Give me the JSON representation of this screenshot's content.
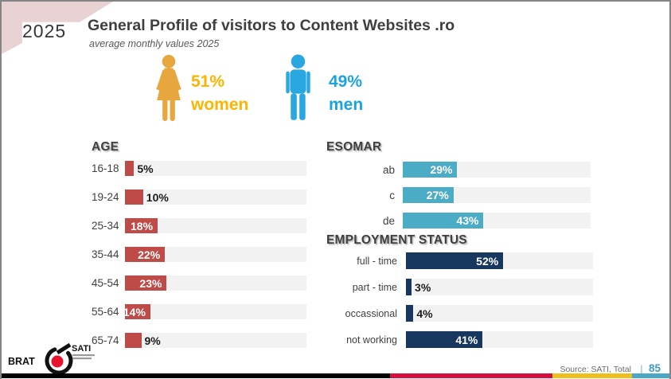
{
  "slide": {
    "year": "2025",
    "title": "General Profile of visitors to Content Websites .ro",
    "subtitle": "average monthly values 2025"
  },
  "gender": {
    "women": {
      "percent": "51%",
      "label": "women"
    },
    "men": {
      "percent": "49%",
      "label": "men"
    }
  },
  "chart_data": [
    {
      "type": "bar",
      "orientation": "horizontal",
      "title": "AGE",
      "categories": [
        "16-18",
        "19-24",
        "25-34",
        "35-44",
        "45-54",
        "55-64",
        "65-74"
      ],
      "values": [
        5,
        10,
        18,
        22,
        23,
        14,
        9
      ],
      "value_labels": [
        "5%",
        "10%",
        "18%",
        "22%",
        "23%",
        "14%",
        "9%"
      ],
      "value_unit": "%",
      "xlim": [
        0,
        100
      ],
      "bar_color": "#BE4B48",
      "track_color": "#F2F2F2"
    },
    {
      "type": "bar",
      "orientation": "horizontal",
      "title": "ESOMAR",
      "categories": [
        "ab",
        "c",
        "de"
      ],
      "values": [
        29,
        27,
        43
      ],
      "value_labels": [
        "29%",
        "27%",
        "43%"
      ],
      "value_unit": "%",
      "xlim": [
        0,
        100
      ],
      "bar_color": "#4BACC6",
      "track_color": "#F2F2F2"
    },
    {
      "type": "bar",
      "orientation": "horizontal",
      "title": "EMPLOYMENT STATUS",
      "categories": [
        "full - time",
        "part - time",
        "occassional",
        "not working"
      ],
      "values": [
        52,
        3,
        4,
        41
      ],
      "value_labels": [
        "52%",
        "3%",
        "4%",
        "41%"
      ],
      "value_unit": "%",
      "xlim": [
        0,
        100
      ],
      "bar_color": "#17375E",
      "track_color": "#F2F2F2"
    }
  ],
  "footer": {
    "logo": {
      "brat": "BRAT",
      "sati": "SATI"
    },
    "source": "Source: SATI, Total",
    "separator": "|",
    "page_number": "85"
  },
  "colors": {
    "corner-pink": "#E9D2D4",
    "age-bar": "#BE4B48",
    "esomar-bar": "#4BACC6",
    "employment-bar": "#17375E",
    "bar-track": "#F2F2F2",
    "women-text": "#FFB400",
    "women-icon": "#E8A73E",
    "men-text": "#1BA3DE",
    "men-icon": "#29A7E0",
    "strip-black": "#000000",
    "strip-red": "#D50F3E",
    "strip-yellow": "#EEC01F",
    "strip-blue": "#4BA7C4",
    "page-number-blue": "#3E9CC9",
    "logo-red": "#E8132E"
  }
}
